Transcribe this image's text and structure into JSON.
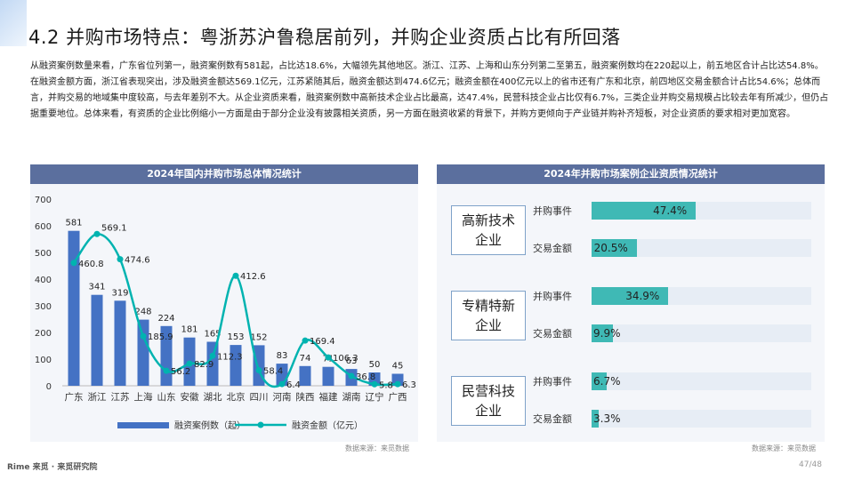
{
  "header": {
    "title": "4.2 并购市场特点：粤浙苏沪鲁稳居前列，并购企业资质占比有所回落"
  },
  "summary_text": "从融资案例数量来看，广东省位列第一，融资案例数有581起，占比达18.6%，大幅领先其他地区。浙江、江苏、上海和山东分列第二至第五，融资案例数均在220起以上，前五地区合计占比达54.8%。在融资金额方面，浙江省表现突出，涉及融资金额达569.1亿元，江苏紧随其后，融资金额达到474.6亿元；融资金额在400亿元以上的省市还有广东和北京，前四地区交易金额合计占比54.6%；总体而言，并购交易的地域集中度较高，与去年差别不大。从企业资质来看，融资案例数中高新技术企业占比最高，达47.4%，民营科技企业占比仅有6.7%，三类企业并购交易规模占比较去年有所减少，但仍占据重要地位。总体来看，有资质的企业比例缩小一方面是由于部分企业没有披露相关资质，另一方面在融资收紧的背景下，并购方更倾向于产业链并购补齐短板，对企业资质的要求相对更加宽容。",
  "left_panel": {
    "title": "2024年国内并购市场总体情况统计",
    "source": "数据来源：来觅数据",
    "legend_bar": "融资案例数（起）",
    "legend_line": "融资金额（亿元）"
  },
  "right_panel": {
    "title": "2024年并购市场案例企业资质情况统计",
    "source": "数据来源：来觅数据",
    "groups": [
      {
        "category": "高新技术企业",
        "rows": [
          {
            "label": "并购事件",
            "value": 47.4,
            "text": "47.4%"
          },
          {
            "label": "交易金额",
            "value": 20.5,
            "text": "20.5%"
          }
        ]
      },
      {
        "category": "专精特新企业",
        "rows": [
          {
            "label": "并购事件",
            "value": 34.9,
            "text": "34.9%"
          },
          {
            "label": "交易金额",
            "value": 9.9,
            "text": "9.9%"
          }
        ]
      },
      {
        "category": "民营科技企业",
        "rows": [
          {
            "label": "并购事件",
            "value": 6.7,
            "text": "6.7%"
          },
          {
            "label": "交易金额",
            "value": 3.3,
            "text": "3.3%"
          }
        ]
      }
    ]
  },
  "footer": {
    "brand": "Rime 来觅 · 来觅研究院",
    "page": "47/48"
  },
  "colors": {
    "bar": "#4472c4",
    "line": "#00b3b0",
    "panel_header": "#5b6f9e",
    "hbar": "#3fb9b5"
  },
  "chart_data": [
    {
      "type": "bar",
      "title": "2024年国内并购市场总体情况统计",
      "categories": [
        "广东",
        "浙江",
        "江苏",
        "上海",
        "山东",
        "安徽",
        "湖北",
        "北京",
        "四川",
        "河南",
        "陕西",
        "福建",
        "湖南",
        "辽宁",
        "广西"
      ],
      "series": [
        {
          "name": "融资案例数（起）",
          "type": "bar",
          "values": [
            581,
            341,
            319,
            248,
            224,
            181,
            165,
            153,
            152,
            83,
            74,
            71,
            63,
            50,
            45
          ]
        },
        {
          "name": "融资金额（亿元）",
          "type": "line",
          "values": [
            460.8,
            569.1,
            474.6,
            185.9,
            56.2,
            82.9,
            112.3,
            412.6,
            58.4,
            6.4,
            169.4,
            106.3,
            36.8,
            5.8,
            6.3
          ]
        }
      ],
      "yticks": [
        0,
        100,
        200,
        300,
        400,
        500,
        600,
        700
      ],
      "ylim": [
        0,
        700
      ],
      "legend_position": "bottom"
    },
    {
      "type": "bar",
      "orientation": "horizontal",
      "title": "2024年并购市场案例企业资质情况统计",
      "categories": [
        "高新技术企业",
        "专精特新企业",
        "民营科技企业"
      ],
      "series": [
        {
          "name": "并购事件",
          "values": [
            47.4,
            34.9,
            6.7
          ]
        },
        {
          "name": "交易金额",
          "values": [
            20.5,
            9.9,
            3.3
          ]
        }
      ],
      "xlim": [
        0,
        100
      ]
    }
  ]
}
